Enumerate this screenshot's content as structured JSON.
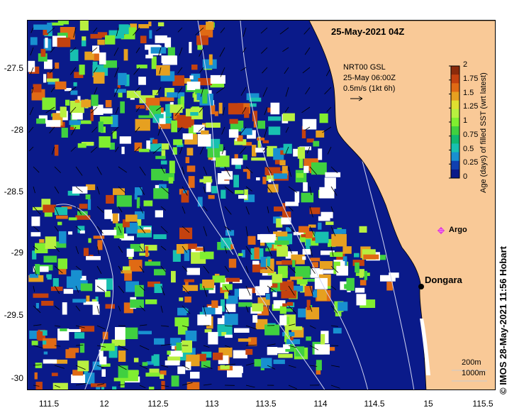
{
  "title": "25-May-2021 04Z",
  "product": {
    "line1": "NRT00 GSL",
    "line2": "25-May 06:00Z",
    "line3": "0.5m/s (1kt 6h)"
  },
  "colorbar": {
    "title": "Age (days) of filled SST (wrt latest)",
    "ticks": [
      "2",
      "1.75",
      "1.5",
      "1.25",
      "1",
      "0.75",
      "0.5",
      "0.25",
      "0"
    ],
    "colors": [
      "#8b2b0b",
      "#c4420f",
      "#e06a14",
      "#e6a020",
      "#e0e030",
      "#b8f040",
      "#80ee30",
      "#40d040",
      "#10b870",
      "#18c0b0",
      "#1890d0",
      "#1040b0",
      "#0a1a8a"
    ]
  },
  "axes": {
    "x_ticks": [
      "111.5",
      "12",
      "112.5",
      "113",
      "113.5",
      "114",
      "114.5",
      "15",
      "115.5"
    ],
    "y_ticks": [
      "-27.5",
      "-28",
      "-28.5",
      "-29",
      "-29.5",
      "-30"
    ]
  },
  "places": {
    "dongara": "Dongara",
    "argo": "Argo"
  },
  "isobaths": {
    "a": "200m",
    "b": "1000m"
  },
  "credit": "© IMOS 28-May-2021 11:56 Hobart",
  "colors": {
    "land": "#f9c997",
    "ocean_deep": "#0a1a8a",
    "argo": "#e030e0"
  }
}
